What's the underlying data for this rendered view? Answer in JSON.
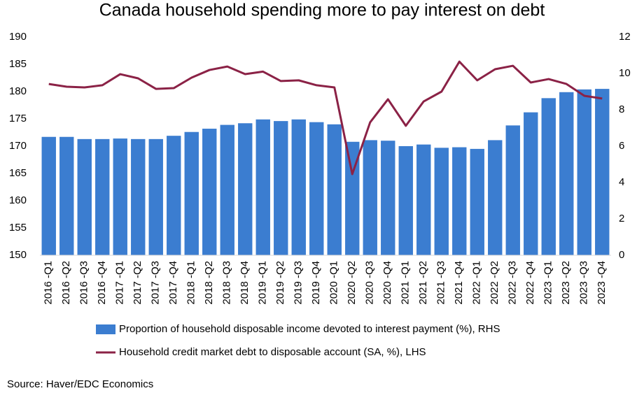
{
  "chart_data": {
    "type": "bar_line",
    "title": "Canada household spending more to pay interest on debt",
    "source": "Source: Haver/EDC Economics",
    "categories": [
      "2016 -Q1",
      "2016 -Q2",
      "2016 -Q3",
      "2016 -Q4",
      "2017 -Q1",
      "2017 -Q2",
      "2017 -Q3",
      "2017 -Q4",
      "2018 -Q1",
      "2018 -Q2",
      "2018 -Q3",
      "2018 -Q4",
      "2019 -Q1",
      "2019 -Q2",
      "2019 -Q3",
      "2019 -Q4",
      "2020 -Q1",
      "2020 -Q2",
      "2020 -Q3",
      "2020 -Q4",
      "2021 -Q1",
      "2021 -Q2",
      "2021 -Q3",
      "2021 -Q4",
      "2022 -Q1",
      "2022 -Q2",
      "2022 -Q3",
      "2022 -Q4",
      "2023 -Q1",
      "2023 -Q2",
      "2023 -Q3",
      "2023 -Q4"
    ],
    "series": [
      {
        "name": "Proportion of household disposable income devoted to interest payment (%), RHS",
        "type": "bar",
        "color": "#3b7dd0",
        "values": [
          171.7,
          171.7,
          171.3,
          171.3,
          171.4,
          171.3,
          171.3,
          171.9,
          172.6,
          173.2,
          173.9,
          174.2,
          174.9,
          174.6,
          174.9,
          174.4,
          174.0,
          170.8,
          171.1,
          171.0,
          170.0,
          170.3,
          169.7,
          169.8,
          169.5,
          171.1,
          173.8,
          176.2,
          178.8,
          179.9,
          180.4,
          180.5
        ]
      },
      {
        "name": "Household credit market debt to disposable account (SA, %),  LHS",
        "type": "line",
        "axis": "y2",
        "color": "#8b2246",
        "values": [
          9.42,
          9.27,
          9.23,
          9.35,
          9.96,
          9.73,
          9.15,
          9.19,
          9.77,
          10.19,
          10.38,
          9.96,
          10.1,
          9.58,
          9.62,
          9.35,
          9.23,
          4.46,
          7.31,
          8.58,
          7.12,
          8.46,
          9.0,
          10.65,
          9.62,
          10.23,
          10.42,
          9.5,
          9.69,
          9.42,
          8.77,
          8.62
        ]
      }
    ],
    "ylim": [
      150,
      190
    ],
    "yticks": [
      150,
      155,
      160,
      165,
      170,
      175,
      180,
      185,
      190
    ],
    "y2lim": [
      0,
      12
    ],
    "y2ticks": [
      0,
      2,
      4,
      6,
      8,
      10,
      12
    ],
    "grid": false
  }
}
